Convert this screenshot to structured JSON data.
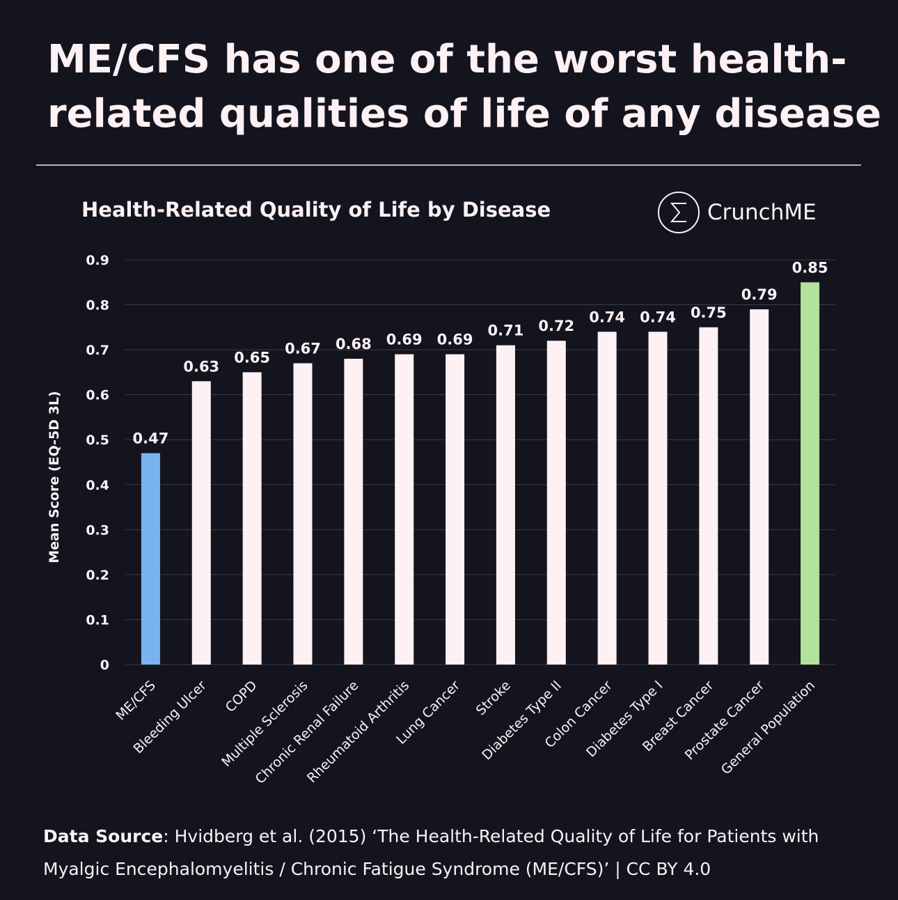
{
  "headline": [
    "ME/CFS has one of the worst health-",
    "related qualities of life of any disease"
  ],
  "brand": "CrunchME",
  "chart_data": {
    "type": "bar",
    "title": "Health-Related Quality of Life by Disease",
    "y_label": "Mean Score (EQ-5D 3L)",
    "categories": [
      "ME/CFS",
      "Bleeding Ulcer",
      "COPD",
      "Multiple Sclerosis",
      "Chronic Renal Failure",
      "Rheumatoid Arthritis",
      "Lung Cancer",
      "Stroke",
      "Diabetes Type II",
      "Colon Cancer",
      "Diabetes Type I",
      "Breast Cancer",
      "Prostate Cancer",
      "General Population"
    ],
    "values": [
      0.47,
      0.63,
      0.65,
      0.67,
      0.68,
      0.69,
      0.69,
      0.71,
      0.72,
      0.74,
      0.74,
      0.75,
      0.79,
      0.85
    ],
    "colors": [
      "#7ab4f0",
      "#fdf1f3",
      "#fdf1f3",
      "#fdf1f3",
      "#fdf1f3",
      "#fdf1f3",
      "#fdf1f3",
      "#fdf1f3",
      "#fdf1f3",
      "#fdf1f3",
      "#fdf1f3",
      "#fdf1f3",
      "#fdf1f3",
      "#b3e29a"
    ],
    "ylim": [
      0,
      0.9
    ],
    "yticks": [
      0,
      0.1,
      0.2,
      0.3,
      0.4,
      0.5,
      0.6,
      0.7,
      0.8,
      0.9
    ],
    "grid": true
  },
  "source": {
    "label": "Data Source",
    "lines": [
      ": Hvidberg et al. (2015) ‘The Health-Related Quality of Life for Patients with",
      "Myalgic Encephalomyelitis / Chronic Fatigue Syndrome (ME/CFS)’ | CC BY 4.0"
    ]
  }
}
